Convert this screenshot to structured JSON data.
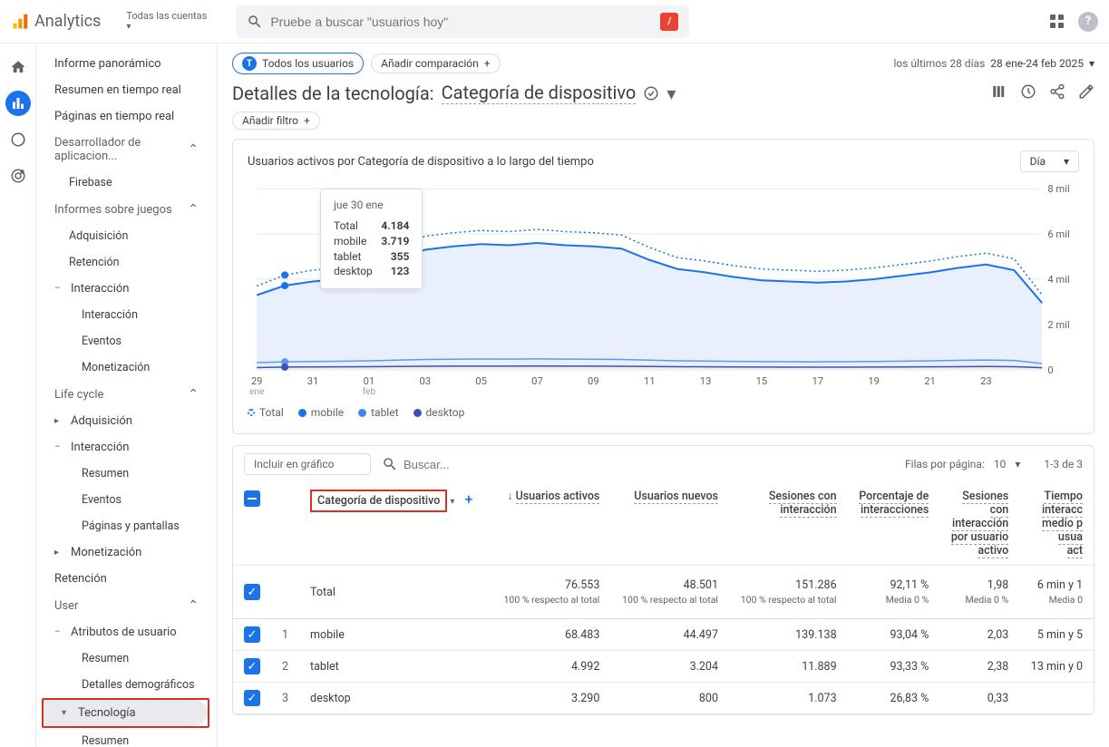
{
  "header": {
    "product": "Analytics",
    "account_label": "Todas las cuentas",
    "search_placeholder": "Pruebe a buscar \"usuarios hoy\"",
    "slash": "⋯"
  },
  "sidebar": {
    "items": [
      {
        "label": "Informe panorámico",
        "type": "item"
      },
      {
        "label": "Resumen en tiempo real",
        "type": "item"
      },
      {
        "label": "Páginas en tiempo real",
        "type": "item"
      },
      {
        "label": "Desarrollador de aplicacion...",
        "type": "section",
        "expanded": true
      },
      {
        "label": "Firebase",
        "type": "sub"
      },
      {
        "label": "Informes sobre juegos",
        "type": "section",
        "expanded": true
      },
      {
        "label": "Adquisición",
        "type": "sub"
      },
      {
        "label": "Retención",
        "type": "sub"
      },
      {
        "label": "Interacción",
        "type": "item",
        "chev": "–"
      },
      {
        "label": "Interacción",
        "type": "sub2"
      },
      {
        "label": "Eventos",
        "type": "sub2"
      },
      {
        "label": "Monetización",
        "type": "sub2"
      },
      {
        "label": "Life cycle",
        "type": "section",
        "expanded": true
      },
      {
        "label": "Adquisición",
        "type": "item",
        "chev": "▸"
      },
      {
        "label": "Interacción",
        "type": "item",
        "chev": "–"
      },
      {
        "label": "Resumen",
        "type": "sub2"
      },
      {
        "label": "Eventos",
        "type": "sub2"
      },
      {
        "label": "Páginas y pantallas",
        "type": "sub2"
      },
      {
        "label": "Monetización",
        "type": "item",
        "chev": "▸"
      },
      {
        "label": "Retención",
        "type": "item"
      },
      {
        "label": "User",
        "type": "section",
        "expanded": true
      },
      {
        "label": "Atributos de usuario",
        "type": "item",
        "chev": "–"
      },
      {
        "label": "Resumen",
        "type": "sub2"
      },
      {
        "label": "Detalles demográficos",
        "type": "sub2"
      },
      {
        "label": "Tecnología",
        "type": "item",
        "chev": "▾",
        "highlighted": true,
        "selected": true
      },
      {
        "label": "Resumen",
        "type": "sub2"
      }
    ]
  },
  "toolbar": {
    "all_users_chip": "Todos los usuarios",
    "add_comparison": "Añadir comparación",
    "date_label": "los últimos 28 días",
    "date_range": "28 ene-24 feb 2025"
  },
  "page": {
    "title_prefix": "Detalles de la tecnología:",
    "title_dim": "Categoría de dispositivo",
    "add_filter": "Añadir filtro"
  },
  "chart": {
    "title": "Usuarios activos por Categoría de dispositivo a lo largo del tiempo",
    "granularity": "Día",
    "y_ticks": [
      "0",
      "2 mil",
      "4 mil",
      "6 mil",
      "8 mil"
    ],
    "y_values": [
      0,
      2000,
      4000,
      6000,
      8000
    ],
    "x_ticks": [
      {
        "main": "29",
        "sub": "ene"
      },
      {
        "main": "31",
        "sub": ""
      },
      {
        "main": "01",
        "sub": "feb"
      },
      {
        "main": "03",
        "sub": ""
      },
      {
        "main": "05",
        "sub": ""
      },
      {
        "main": "07",
        "sub": ""
      },
      {
        "main": "09",
        "sub": ""
      },
      {
        "main": "11",
        "sub": ""
      },
      {
        "main": "13",
        "sub": ""
      },
      {
        "main": "15",
        "sub": ""
      },
      {
        "main": "17",
        "sub": ""
      },
      {
        "main": "19",
        "sub": ""
      },
      {
        "main": "21",
        "sub": ""
      },
      {
        "main": "23",
        "sub": ""
      }
    ],
    "legend": [
      {
        "label": "Total",
        "color": "#1a73e8",
        "dashed": true
      },
      {
        "label": "mobile",
        "color": "#1a73e8"
      },
      {
        "label": "tablet",
        "color": "#4285f4"
      },
      {
        "label": "desktop",
        "color": "#3f51b5"
      }
    ],
    "colors": {
      "total": "#1a73e8",
      "mobile": "#1a73e8",
      "tablet": "#5e97f6",
      "desktop": "#3f51b5",
      "area_fill": "#e8f0fe",
      "grid": "#e8eaed"
    },
    "series": {
      "total": [
        3700,
        4184,
        4400,
        4500,
        4700,
        5400,
        5900,
        6050,
        6150,
        6100,
        6200,
        6100,
        6050,
        5950,
        5400,
        4950,
        4800,
        4600,
        4450,
        4400,
        4350,
        4400,
        4500,
        4650,
        4800,
        5000,
        5150,
        4900,
        3300
      ],
      "mobile": [
        3300,
        3719,
        3900,
        4000,
        4200,
        4850,
        5300,
        5450,
        5550,
        5500,
        5600,
        5500,
        5450,
        5350,
        4850,
        4450,
        4300,
        4100,
        3950,
        3900,
        3850,
        3900,
        4000,
        4150,
        4300,
        4500,
        4650,
        4400,
        2950
      ],
      "tablet": [
        320,
        355,
        370,
        380,
        400,
        430,
        460,
        470,
        480,
        475,
        485,
        475,
        470,
        460,
        430,
        400,
        390,
        375,
        365,
        360,
        355,
        360,
        370,
        385,
        400,
        420,
        435,
        415,
        280
      ],
      "desktop": [
        100,
        123,
        130,
        135,
        140,
        150,
        160,
        163,
        167,
        165,
        170,
        165,
        163,
        160,
        150,
        140,
        135,
        128,
        123,
        120,
        118,
        120,
        125,
        130,
        135,
        142,
        148,
        140,
        95
      ]
    },
    "tooltip": {
      "date": "jue 30 ene",
      "rows": [
        {
          "k": "Total",
          "v": "4.184"
        },
        {
          "k": "mobile",
          "v": "3.719"
        },
        {
          "k": "tablet",
          "v": "355"
        },
        {
          "k": "desktop",
          "v": "123"
        }
      ]
    },
    "hover_index": 1
  },
  "table": {
    "include_in_chart": "Incluir en gráfico",
    "search_placeholder": "Buscar...",
    "rows_per_page_label": "Filas por página:",
    "rows_per_page_value": "10",
    "range_label": "1-3 de 3",
    "dim_header": "Categoría de dispositivo",
    "columns": [
      {
        "label": "Usuarios activos",
        "sorted": true
      },
      {
        "label": "Usuarios nuevos"
      },
      {
        "label": "Sesiones con",
        "label2": "interacción"
      },
      {
        "label": "Porcentaje de",
        "label2": "interacciones"
      },
      {
        "label": "Sesiones",
        "label2": "con",
        "label3": "interacción",
        "label4": "por usuario",
        "label5": "activo"
      },
      {
        "label": "Tiempo",
        "label2": "interacc",
        "label3": "medio p",
        "label4": "usua",
        "label5": "act"
      }
    ],
    "total_row": {
      "label": "Total",
      "cells": [
        {
          "v": "76.553",
          "sub": "100 % respecto al total"
        },
        {
          "v": "48.501",
          "sub": "100 % respecto al total"
        },
        {
          "v": "151.286",
          "sub": "100 % respecto al total"
        },
        {
          "v": "92,11 %",
          "sub": "Media 0 %"
        },
        {
          "v": "1,98",
          "sub": "Media 0 %"
        },
        {
          "v": "6 min y 1",
          "sub": "Media 0"
        }
      ]
    },
    "rows": [
      {
        "idx": "1",
        "dim": "mobile",
        "cells": [
          "68.483",
          "44.497",
          "139.138",
          "93,04 %",
          "2,03",
          "5 min y 5"
        ]
      },
      {
        "idx": "2",
        "dim": "tablet",
        "cells": [
          "4.992",
          "3.204",
          "11.889",
          "93,33 %",
          "2,38",
          "13 min y 0"
        ]
      },
      {
        "idx": "3",
        "dim": "desktop",
        "cells": [
          "3.290",
          "800",
          "1.073",
          "26,83 %",
          "0,33",
          ""
        ]
      }
    ]
  }
}
